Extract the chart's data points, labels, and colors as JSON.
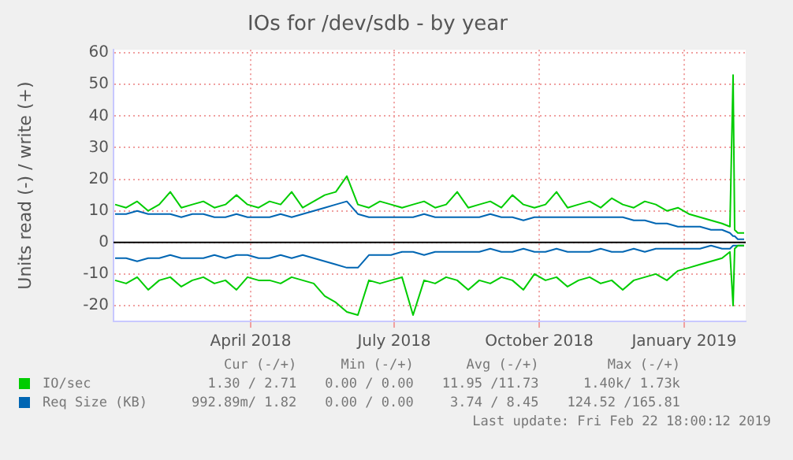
{
  "chart_data": {
    "type": "line",
    "title": "IOs for /dev/sdb - by year",
    "ylabel": "Units read (-) / write (+)",
    "x": [
      "2018-01-05",
      "2018-01-12",
      "2018-01-19",
      "2018-01-26",
      "2018-02-02",
      "2018-02-09",
      "2018-02-16",
      "2018-02-23",
      "2018-03-02",
      "2018-03-09",
      "2018-03-16",
      "2018-03-23",
      "2018-03-30",
      "2018-04-06",
      "2018-04-13",
      "2018-04-20",
      "2018-04-27",
      "2018-05-04",
      "2018-05-11",
      "2018-05-18",
      "2018-05-25",
      "2018-06-01",
      "2018-06-08",
      "2018-06-15",
      "2018-06-22",
      "2018-06-29",
      "2018-07-06",
      "2018-07-13",
      "2018-07-20",
      "2018-07-27",
      "2018-08-03",
      "2018-08-10",
      "2018-08-17",
      "2018-08-24",
      "2018-08-31",
      "2018-09-07",
      "2018-09-14",
      "2018-09-21",
      "2018-09-28",
      "2018-10-05",
      "2018-10-12",
      "2018-10-19",
      "2018-10-26",
      "2018-11-02",
      "2018-11-09",
      "2018-11-16",
      "2018-11-23",
      "2018-11-30",
      "2018-12-07",
      "2018-12-14",
      "2018-12-21",
      "2018-12-28",
      "2019-01-04",
      "2019-01-11",
      "2019-01-18",
      "2019-01-25",
      "2019-01-30",
      "2019-02-01",
      "2019-02-02",
      "2019-02-04",
      "2019-02-08"
    ],
    "series": [
      {
        "name": "IO/sec",
        "color": "#00cc00",
        "values": [
          12,
          11,
          13,
          10,
          12,
          16,
          11,
          12,
          13,
          11,
          12,
          15,
          12,
          11,
          13,
          12,
          16,
          11,
          13,
          15,
          16,
          21,
          12,
          11,
          13,
          12,
          11,
          12,
          13,
          11,
          12,
          16,
          11,
          12,
          13,
          11,
          15,
          12,
          11,
          12,
          16,
          11,
          12,
          13,
          11,
          14,
          12,
          11,
          13,
          12,
          10,
          11,
          9,
          8,
          7,
          6,
          5,
          53,
          4,
          3,
          3
        ]
      },
      {
        "color": "#00cc00",
        "values": [
          -12,
          -13,
          -11,
          -15,
          -12,
          -11,
          -14,
          -12,
          -11,
          -13,
          -12,
          -15,
          -11,
          -12,
          -12,
          -13,
          -11,
          -12,
          -13,
          -17,
          -19,
          -22,
          -23,
          -12,
          -13,
          -12,
          -11,
          -23,
          -12,
          -13,
          -11,
          -12,
          -15,
          -12,
          -13,
          -11,
          -12,
          -15,
          -10,
          -12,
          -11,
          -14,
          -12,
          -11,
          -13,
          -12,
          -15,
          -12,
          -11,
          -10,
          -12,
          -9,
          -8,
          -7,
          -6,
          -5,
          -3,
          -20,
          -2,
          -1,
          -1
        ]
      },
      {
        "name": "Req Size (KB)",
        "color": "#0066b3",
        "values": [
          9,
          9,
          10,
          9,
          9,
          9,
          8,
          9,
          9,
          8,
          8,
          9,
          8,
          8,
          8,
          9,
          8,
          9,
          10,
          11,
          12,
          13,
          9,
          8,
          8,
          8,
          8,
          8,
          9,
          8,
          8,
          8,
          8,
          8,
          9,
          8,
          8,
          7,
          8,
          8,
          8,
          8,
          8,
          8,
          8,
          8,
          8,
          7,
          7,
          6,
          6,
          5,
          5,
          5,
          4,
          4,
          3,
          2,
          2,
          1,
          1
        ]
      },
      {
        "color": "#0066b3",
        "values": [
          -5,
          -5,
          -6,
          -5,
          -5,
          -4,
          -5,
          -5,
          -5,
          -4,
          -5,
          -4,
          -4,
          -5,
          -5,
          -4,
          -5,
          -4,
          -5,
          -6,
          -7,
          -8,
          -8,
          -4,
          -4,
          -4,
          -3,
          -3,
          -4,
          -3,
          -3,
          -3,
          -3,
          -3,
          -2,
          -3,
          -3,
          -2,
          -3,
          -3,
          -2,
          -3,
          -3,
          -3,
          -2,
          -3,
          -3,
          -2,
          -3,
          -2,
          -2,
          -2,
          -2,
          -2,
          -1,
          -2,
          -2,
          -1,
          -1,
          -1,
          -1
        ]
      }
    ],
    "xlim": [
      "2018-01-04",
      "2019-02-09"
    ],
    "xticks": [
      {
        "value": "2018-04-01",
        "label": "April 2018"
      },
      {
        "value": "2018-07-01",
        "label": "July 2018"
      },
      {
        "value": "2018-10-01",
        "label": "October 2018"
      },
      {
        "value": "2019-01-01",
        "label": "January 2019"
      }
    ],
    "ylim": [
      -25,
      61
    ],
    "yticks": [
      -20,
      -10,
      0,
      10,
      20,
      30,
      40,
      50,
      60
    ],
    "ref_lines": [
      {
        "axis": "y",
        "value": 0,
        "color": "#000000"
      }
    ],
    "grid": true,
    "legend": "bottom",
    "marker": "none",
    "line_style": "solid",
    "annotations": [
      "Cur (-/+)",
      "Min (-/+)",
      "Avg (-/+)",
      "Max (-/+)",
      "1.30 / 2.71",
      "0.00 / 0.00",
      "11.95 /11.73",
      "1.40k/ 1.73k",
      "992.89m/ 1.82",
      "0.00 / 0.00",
      "3.74 / 8.45",
      "124.52 /165.81",
      "Last update: Fri Feb 22 18:00:12 2019"
    ]
  }
}
